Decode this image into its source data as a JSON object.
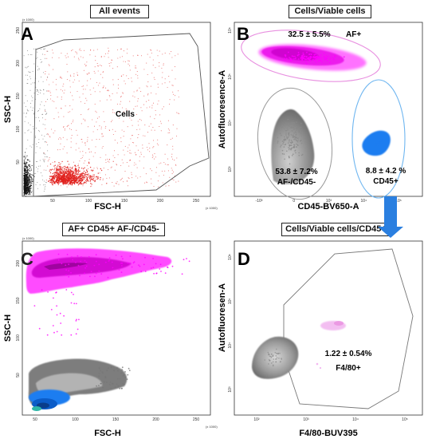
{
  "panels": {
    "A": {
      "letter": "A",
      "title": "All events",
      "xlabel": "FSC-H",
      "ylabel": "SSC-H",
      "x_unit": "(x 1000)",
      "y_unit": "(x 1000)",
      "gate_label": "Cells"
    },
    "B": {
      "letter": "B",
      "title": "Cells/Viable cells",
      "xlabel": "CD45-BV650-A",
      "ylabel": "Autofluoresence-A",
      "gates": [
        {
          "pct": "32.5 ± 5.5%",
          "name": "AF+"
        },
        {
          "pct": "53.8 ± 7.2%",
          "name": "AF-/CD45-"
        },
        {
          "pct": "8.8 ± 4.2 %",
          "name": "CD45+"
        }
      ]
    },
    "C": {
      "letter": "C",
      "title": "AF+ CD45+ AF-/CD45-",
      "xlabel": "FSC-H",
      "ylabel": "SSC-H",
      "x_unit": "(x 1000)",
      "y_unit": "(x 1000)"
    },
    "D": {
      "letter": "D",
      "title": "Cells/Viable cells/CD45+",
      "xlabel": "F4/80-BUV395",
      "ylabel": "Autofluoresen-A",
      "gate": {
        "pct": "1.22 ± 0.54%",
        "name": "F4/80+"
      }
    }
  },
  "colors": {
    "red_events": "#e0201c",
    "black_events": "#111111",
    "magenta": "#ff00ff",
    "blue": "#1e7df0",
    "gray": "#7f7f7f",
    "pink_light": "#f2b8f0",
    "gate_pink": "#e890e0",
    "gate_blue": "#6fb6f0",
    "arrow": "#2a7fe0"
  },
  "chart_data": [
    {
      "panel": "A",
      "type": "scatter",
      "title": "All events",
      "xlabel": "FSC-H",
      "ylabel": "SSC-H",
      "xlim": [
        0,
        262
      ],
      "ylim": [
        0,
        262
      ],
      "x_ticks": [
        "50",
        "100",
        "150",
        "200",
        "250"
      ],
      "y_ticks": [
        "50",
        "100",
        "150",
        "200",
        "250"
      ],
      "populations": [
        "Cells"
      ]
    },
    {
      "panel": "B",
      "type": "scatter",
      "title": "Cells/Viable cells",
      "xlabel": "CD45-BV650-A",
      "ylabel": "Autofluoresence-A",
      "x_ticks": [
        "-10³",
        "0",
        "10³",
        "10⁴",
        "10⁵"
      ],
      "y_ticks": [
        "10³",
        "10⁴",
        "10⁵",
        "10⁶"
      ],
      "gates": [
        {
          "name": "AF+",
          "percent": 32.5,
          "sd": 5.5
        },
        {
          "name": "AF-/CD45-",
          "percent": 53.8,
          "sd": 7.2
        },
        {
          "name": "CD45+",
          "percent": 8.8,
          "sd": 4.2
        }
      ]
    },
    {
      "panel": "C",
      "type": "scatter",
      "title": "AF+ CD45+ AF-/CD45-",
      "xlabel": "FSC-H",
      "ylabel": "SSC-H",
      "xlim": [
        0,
        262
      ],
      "ylim": [
        0,
        262
      ],
      "x_ticks": [
        "50",
        "100",
        "150",
        "200",
        "250"
      ],
      "y_ticks": [
        "50",
        "100",
        "150",
        "200"
      ],
      "series": [
        {
          "name": "AF+"
        },
        {
          "name": "CD45+"
        },
        {
          "name": "AF-/CD45-"
        }
      ]
    },
    {
      "panel": "D",
      "type": "scatter",
      "title": "Cells/Viable cells/CD45+",
      "xlabel": "F4/80-BUV395",
      "ylabel": "Autofluoresen-A",
      "x_ticks": [
        "10²",
        "10³",
        "10⁴",
        "10⁵"
      ],
      "y_ticks": [
        "10³",
        "10⁴",
        "10⁵",
        "10⁶"
      ],
      "gates": [
        {
          "name": "F4/80+",
          "percent": 1.22,
          "sd": 0.54
        }
      ]
    }
  ]
}
